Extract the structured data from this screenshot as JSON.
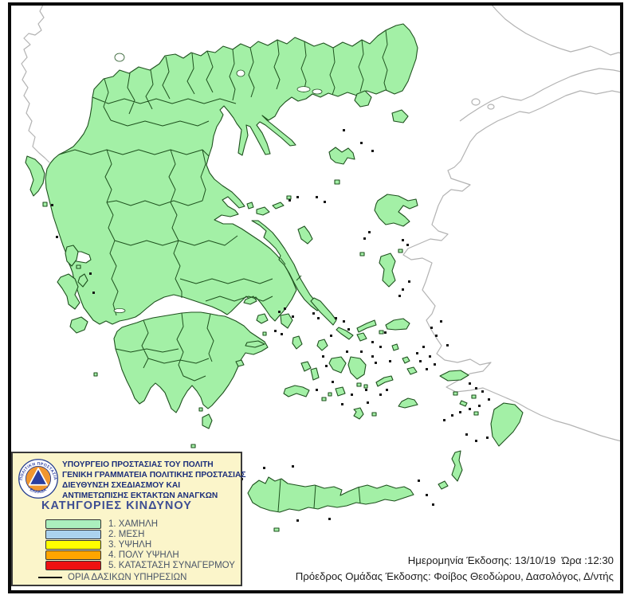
{
  "colors": {
    "region_fill": "#A3F0A6",
    "region_border": "#1E511E",
    "neighbor_coast": "#B3B3B3",
    "sea": "#FFFFFF",
    "frame": "#0A0A0A",
    "legend_bg": "#FBF5CA",
    "legend_border": "#3A3A3A",
    "header_text": "#1B2E7A",
    "title_text": "#3E4E93",
    "category_text": "#4A5568",
    "footer_text": "#1C1C1C",
    "logo_orange": "#F0962F",
    "logo_navy": "#2B3FA0"
  },
  "legend": {
    "agency_lines": [
      "ΥΠΟΥΡΓΕΙΟ ΠΡΟΣΤΑΣΙΑΣ ΤΟΥ ΠΟΛΙΤΗ",
      "ΓΕΝΙΚΗ ΓΡΑΜΜΑΤΕΙΑ ΠΟΛΙΤΙΚΗΣ ΠΡΟΣΤΑΣΙΑΣ",
      "ΔΙΕΥΘΥΝΣΗ ΣΧΕΔΙΑΣΜΟΥ ΚΑΙ",
      "ΑΝΤΙΜΕΤΩΠΙΣΗΣ ΕΚΤΑΚΤΩΝ ΑΝΑΓΚΩΝ"
    ],
    "title": "ΚΑΤΗΓΟΡΙΕΣ ΚΙΝΔΥΝΟΥ",
    "categories": [
      {
        "label": "1. ΧΑΜΗΛΗ",
        "color": "#ABEFBD"
      },
      {
        "label": "2. ΜΕΣΗ",
        "color": "#ABD2EE"
      },
      {
        "label": "3. ΥΨΗΛΗ",
        "color": "#FFFF00"
      },
      {
        "label": "4. ΠΟΛΥ ΥΨΗΛΗ",
        "color": "#FFA500"
      },
      {
        "label": "5. ΚΑΤΑΣΤΑΣΗ ΣΥΝΑΓΕΡΜΟΥ",
        "color": "#EE1111"
      }
    ],
    "boundary_line_label": "ΟΡΙΑ ΔΑΣΙΚΩΝ ΥΠΗΡΕΣΙΩΝ",
    "logo": {
      "ring_text_top": "ΠΟΛΙΤΙΚΗ ΠΡΟΣΤΑΣΙΑ",
      "ring_text_bottom": "· ΕΛΛΑΔΑ ·"
    }
  },
  "footer": {
    "issue_date_label": "Ημερομηνία Έκδοσης:",
    "issue_date": "13/10/19",
    "time_label": "Ώρα :",
    "time": "12:30",
    "issuer_label": "Πρόεδρος Ομάδας Έκδοσης:",
    "issuer_value": "Φοίβος Θεοδώρου,  Δασολόγος, Δ/ντής"
  }
}
